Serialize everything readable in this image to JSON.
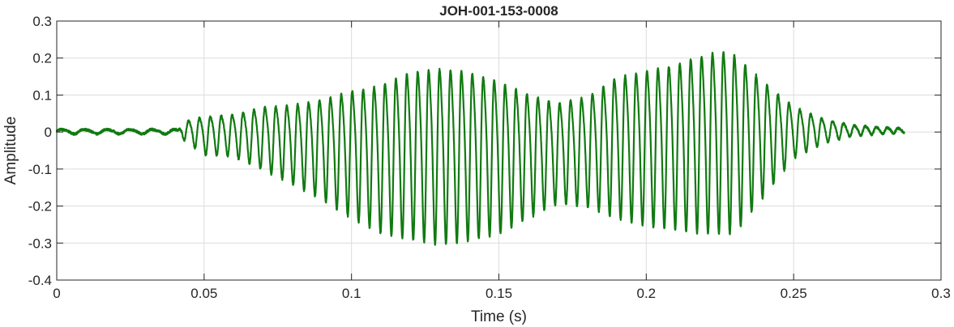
{
  "chart_data": {
    "type": "line",
    "title": "JOH-001-153-0008",
    "xlabel": "Time (s)",
    "ylabel": "Amplitude",
    "xlim": [
      0,
      0.3
    ],
    "ylim": [
      -0.4,
      0.3
    ],
    "xticks": [
      0,
      0.05,
      0.1,
      0.15,
      0.2,
      0.25,
      0.3
    ],
    "xtick_labels": [
      "0",
      "0.05",
      "0.1",
      "0.15",
      "0.2",
      "0.25",
      "0.3"
    ],
    "yticks": [
      -0.4,
      -0.3,
      -0.2,
      -0.1,
      0,
      0.1,
      0.2,
      0.3
    ],
    "ytick_labels": [
      "-0.4",
      "-0.3",
      "-0.2",
      "-0.1",
      "0",
      "0.1",
      "0.2",
      "0.3"
    ],
    "grid": true,
    "series": [
      {
        "color": "#117a11",
        "x_start": 0,
        "x_end": 0.2875,
        "frequency_hz": 270,
        "onset_time": 0.042,
        "envelope_upper": [
          [
            0,
            0.008
          ],
          [
            0.041,
            0.008
          ],
          [
            0.043,
            0.03
          ],
          [
            0.05,
            0.05
          ],
          [
            0.06,
            0.055
          ],
          [
            0.07,
            0.08
          ],
          [
            0.08,
            0.09
          ],
          [
            0.09,
            0.11
          ],
          [
            0.1,
            0.14
          ],
          [
            0.11,
            0.16
          ],
          [
            0.12,
            0.2
          ],
          [
            0.13,
            0.21
          ],
          [
            0.14,
            0.2
          ],
          [
            0.15,
            0.17
          ],
          [
            0.16,
            0.13
          ],
          [
            0.17,
            0.1
          ],
          [
            0.18,
            0.12
          ],
          [
            0.19,
            0.18
          ],
          [
            0.2,
            0.2
          ],
          [
            0.21,
            0.22
          ],
          [
            0.22,
            0.25
          ],
          [
            0.225,
            0.26
          ],
          [
            0.23,
            0.25
          ],
          [
            0.24,
            0.16
          ],
          [
            0.25,
            0.08
          ],
          [
            0.26,
            0.04
          ],
          [
            0.27,
            0.02
          ],
          [
            0.2875,
            0.01
          ]
        ],
        "envelope_lower": [
          [
            0,
            -0.005
          ],
          [
            0.041,
            -0.005
          ],
          [
            0.043,
            -0.02
          ],
          [
            0.05,
            -0.06
          ],
          [
            0.06,
            -0.065
          ],
          [
            0.07,
            -0.1
          ],
          [
            0.08,
            -0.14
          ],
          [
            0.09,
            -0.18
          ],
          [
            0.1,
            -0.23
          ],
          [
            0.11,
            -0.27
          ],
          [
            0.12,
            -0.285
          ],
          [
            0.13,
            -0.3
          ],
          [
            0.14,
            -0.29
          ],
          [
            0.15,
            -0.27
          ],
          [
            0.16,
            -0.23
          ],
          [
            0.17,
            -0.19
          ],
          [
            0.18,
            -0.2
          ],
          [
            0.19,
            -0.23
          ],
          [
            0.2,
            -0.25
          ],
          [
            0.21,
            -0.26
          ],
          [
            0.22,
            -0.27
          ],
          [
            0.23,
            -0.27
          ],
          [
            0.24,
            -0.17
          ],
          [
            0.25,
            -0.07
          ],
          [
            0.26,
            -0.03
          ],
          [
            0.27,
            -0.01
          ],
          [
            0.2875,
            -0.002
          ]
        ]
      }
    ]
  }
}
